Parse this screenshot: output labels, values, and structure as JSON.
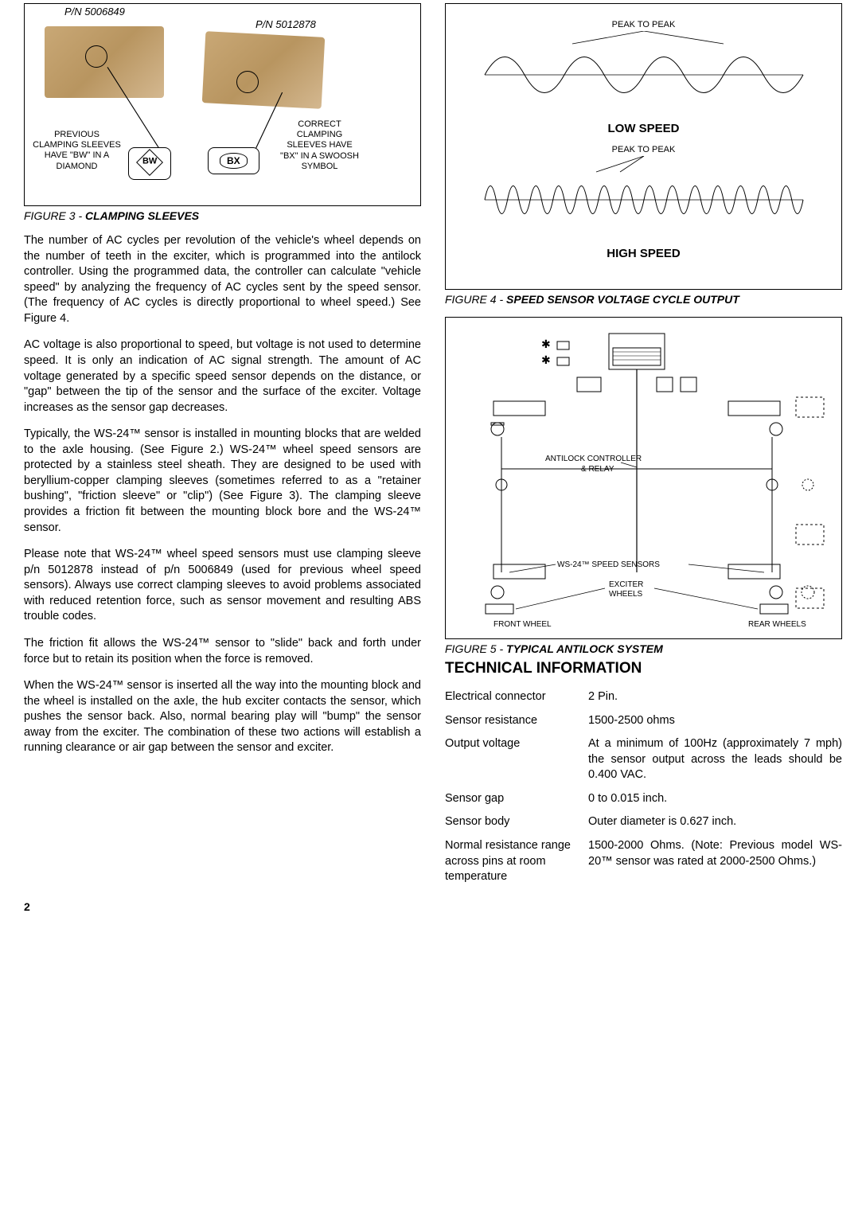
{
  "fig3": {
    "pn_left": "P/N 5006849",
    "pn_right": "P/N 5012878",
    "label_left": "PREVIOUS CLAMPING SLEEVES HAVE \"BW\" IN A DIAMOND",
    "label_right": "CORRECT CLAMPING SLEEVES HAVE \"BX\" IN A SWOOSH SYMBOL",
    "bw": "BW",
    "bx": "BX",
    "caption_prefix": "FIGURE 3 - ",
    "caption_title": "CLAMPING SLEEVES",
    "sleeve_color_a": "#c9a876",
    "sleeve_color_b": "#b89560"
  },
  "fig4": {
    "peak_to_peak": "PEAK TO PEAK",
    "low_speed": "LOW SPEED",
    "high_speed": "HIGH SPEED",
    "caption_prefix": "FIGURE 4 - ",
    "caption_title": "SPEED SENSOR VOLTAGE CYCLE OUTPUT",
    "low_cycles": 4,
    "high_cycles": 14,
    "line_color": "#000000"
  },
  "fig5": {
    "antilock_label": "ANTILOCK CONTROLLER & RELAY",
    "ws24_label": "WS-24™ SPEED SENSORS",
    "exciter_label": "EXCITER WHEELS",
    "front_label": "FRONT WHEEL",
    "rear_label": "REAR WHEELS",
    "caption_prefix": "FIGURE 5 - ",
    "caption_title": "TYPICAL ANTILOCK SYSTEM"
  },
  "body": {
    "p1": "The number of AC cycles per revolution of the vehicle's wheel depends on the number of teeth in the exciter, which is programmed into the antilock controller.  Using the programmed data, the controller can calculate \"vehicle speed\" by analyzing the frequency of AC cycles sent by the speed sensor.  (The frequency of AC cycles is directly proportional to wheel speed.) See Figure 4.",
    "p2": "AC voltage is also proportional to speed, but voltage is not used to determine speed.  It is only an indication of AC signal strength.  The amount of AC voltage generated by a specific speed sensor depends on the distance, or \"gap\" between the tip of the sensor and the surface of the exciter.  Voltage increases as the sensor gap decreases.",
    "p3": "Typically, the WS-24™ sensor is installed in mounting blocks that are welded to the axle housing.  (See Figure 2.)  WS-24™ wheel speed sensors are protected by a stainless steel sheath.  They are designed to be used with beryllium-copper clamping sleeves (sometimes referred to as a \"retainer bushing\", \"friction sleeve\" or \"clip\") (See Figure 3).  The clamping sleeve provides a friction fit between the mounting block bore and the WS-24™ sensor.",
    "p4": "Please note that WS-24™ wheel speed sensors must use clamping sleeve p/n 5012878 instead of p/n 5006849 (used for previous wheel speed sensors).  Always use correct clamping sleeves to avoid problems associated with reduced retention force, such as sensor movement and resulting ABS trouble codes.",
    "p5": "The friction fit allows the WS-24™ sensor to \"slide\" back and forth under force but to retain its position when the force is removed.",
    "p6": "When the WS-24™ sensor is inserted all the way into the mounting block and the wheel is installed on the axle, the hub exciter contacts the sensor, which pushes the sensor back.  Also, normal bearing play will \"bump\" the sensor away from the exciter.  The combination of these two actions will establish a running clearance or air gap between the sensor and exciter."
  },
  "tech": {
    "heading": "TECHNICAL INFORMATION",
    "rows": [
      {
        "label": "Electrical connector",
        "value": "2 Pin."
      },
      {
        "label": "Sensor resistance",
        "value": "1500-2500 ohms"
      },
      {
        "label": "Output voltage",
        "value": "At a minimum of 100Hz (approximately 7 mph) the sensor output across the leads should be 0.400 VAC."
      },
      {
        "label": "Sensor gap",
        "value": "0 to 0.015 inch."
      },
      {
        "label": "Sensor body",
        "value": "Outer diameter is 0.627 inch."
      },
      {
        "label": "Normal resistance range across pins at room temperature",
        "value": "1500-2000 Ohms.\n(Note: Previous model WS-20™ sensor was rated at 2000-2500 Ohms.)"
      }
    ]
  },
  "page_number": "2"
}
